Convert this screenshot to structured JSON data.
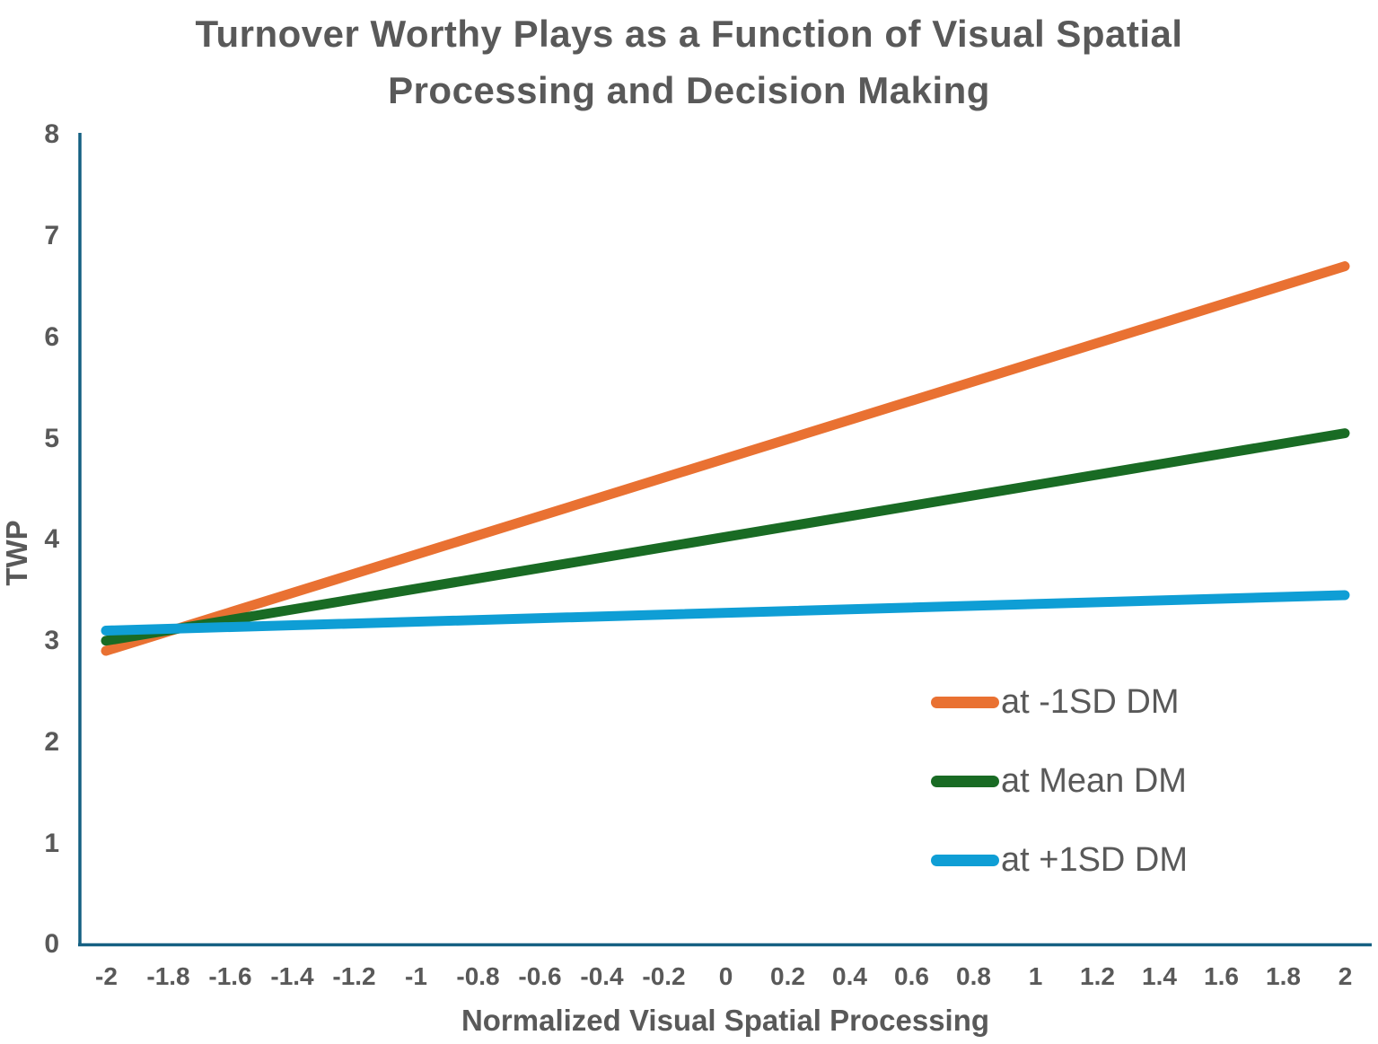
{
  "title": "Turnover Worthy Plays as a Function of Visual Spatial Processing and Decision Making",
  "colors": {
    "axis": "#156082",
    "text": "#595959",
    "background": "#FFFFFF",
    "series_orange": "#E97132",
    "series_green": "#196B24",
    "series_blue": "#0F9ED5"
  },
  "chart_data": {
    "type": "line",
    "title": "Turnover Worthy Plays as a Function of Visual Spatial Processing and Decision Making",
    "xlabel": "Normalized Visual Spatial Processing",
    "ylabel": "TWP",
    "xlim": [
      -2,
      2
    ],
    "ylim": [
      0,
      8
    ],
    "grid": false,
    "legend_position": "inside-right",
    "x_tick_labels": [
      "-2",
      "-1.8",
      "-1.6",
      "-1.4",
      "-1.2",
      "-1",
      "-0.8",
      "-0.6",
      "-0.4",
      "-0.2",
      "0",
      "0.2",
      "0.4",
      "0.6",
      "0.8",
      "1",
      "1.2",
      "1.4",
      "1.6",
      "1.8",
      "2"
    ],
    "y_tick_labels": [
      "8",
      "7",
      "6",
      "5",
      "4",
      "3",
      "2",
      "1",
      "0"
    ],
    "series": [
      {
        "name": "at -1SD DM",
        "color": "#E97132",
        "x": [
          -2,
          2
        ],
        "y": [
          2.9,
          6.7
        ]
      },
      {
        "name": "at Mean DM",
        "color": "#196B24",
        "x": [
          -2,
          2
        ],
        "y": [
          3.0,
          5.05
        ]
      },
      {
        "name": "at +1SD DM",
        "color": "#0F9ED5",
        "x": [
          -2,
          2
        ],
        "y": [
          3.1,
          3.45
        ]
      }
    ]
  }
}
